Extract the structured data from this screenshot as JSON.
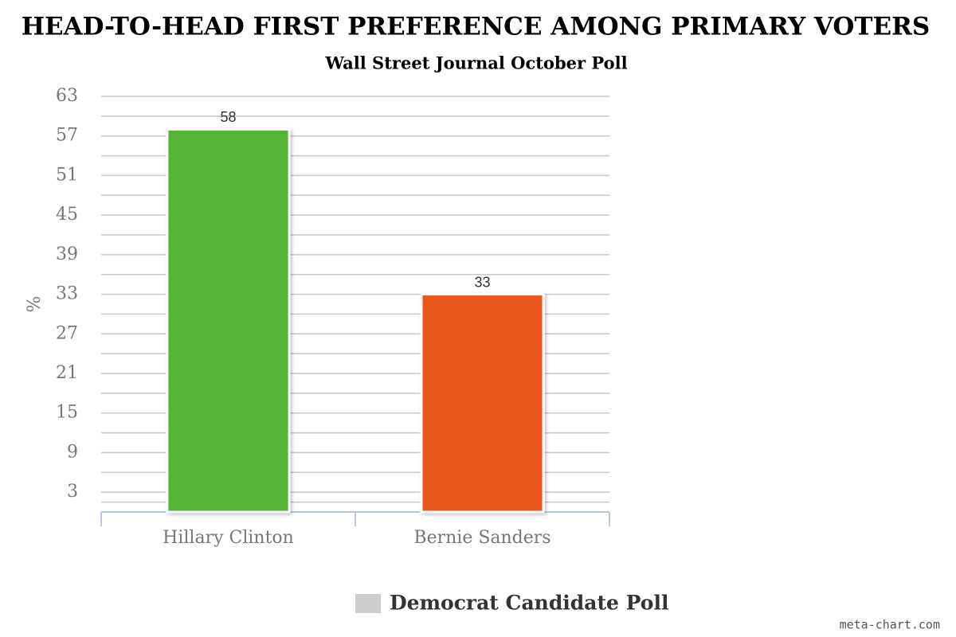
{
  "chart_data": {
    "type": "bar",
    "title": "HEAD-TO-HEAD FIRST PREFERENCE AMONG PRIMARY VOTERS",
    "subtitle": "Wall Street Journal October Poll",
    "y_label": "%",
    "categories": [
      "Hillary Clinton",
      "Bernie Sanders"
    ],
    "series": [
      {
        "name": "Democrat Candidate Poll",
        "color": "#cccccc",
        "colors": [
          "#52b334",
          "#eb561c"
        ],
        "values": [
          58,
          33
        ]
      }
    ],
    "ylim": [
      0,
      63
    ],
    "yticks": [
      3,
      9,
      15,
      21,
      27,
      33,
      39,
      45,
      51,
      57,
      63
    ],
    "grid": true,
    "minor_grid": true,
    "legend": "bottom",
    "credit": "meta-chart.com"
  }
}
